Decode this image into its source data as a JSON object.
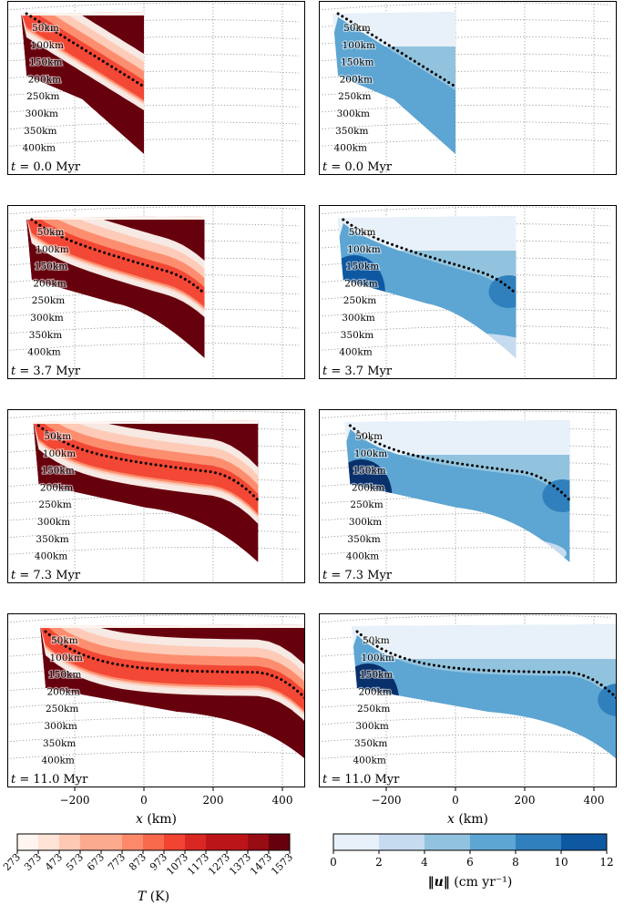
{
  "chart_data": {
    "type": "contour",
    "time_unit": "Myr",
    "time_symbol": "t",
    "x_axis": {
      "label": "x (km)",
      "label_var": "x",
      "label_unit": "(km)",
      "ticks": [
        -200,
        0,
        200,
        400
      ],
      "tick_labels": [
        "−200",
        "0",
        "200",
        "400"
      ],
      "range": [
        -355,
        490
      ]
    },
    "depth_labels": [
      "50km",
      "100km",
      "150km",
      "200km",
      "250km",
      "300km",
      "350km",
      "400km"
    ],
    "depth_values_km": [
      50,
      100,
      150,
      200,
      250,
      300,
      350,
      400
    ],
    "panels": [
      {
        "time": "0.0",
        "time_label": "t = 0.0 Myr",
        "time_text": "0.0 Myr",
        "x_right_km": 0,
        "x_left_km": -355
      },
      {
        "time": "3.7",
        "time_label": "t = 3.7 Myr",
        "time_text": "3.7 Myr",
        "x_right_km": 175,
        "x_left_km": -340
      },
      {
        "time": "7.3",
        "time_label": "t = 7.3 Myr",
        "time_text": "7.3 Myr",
        "x_right_km": 330,
        "x_left_km": -320
      },
      {
        "time": "11.0",
        "time_label": "t = 11.0 Myr",
        "time_text": "11.0 Myr",
        "x_right_km": 490,
        "x_left_km": -300
      }
    ],
    "temperature_colorbar": {
      "label": "T (K)",
      "label_var": "T",
      "label_unit": "(K)",
      "ticks": [
        "273",
        "373",
        "473",
        "573",
        "673",
        "773",
        "873",
        "973",
        "1073",
        "1173",
        "1273",
        "1373",
        "1473",
        "1573"
      ],
      "colormap": "Reds",
      "colors": [
        "#fff5f0",
        "#fee3d6",
        "#fdc9b4",
        "#fcaa8e",
        "#fc8a6a",
        "#f9694c",
        "#f14432",
        "#d92723",
        "#bb151a",
        "#980c13",
        "#67000d"
      ]
    },
    "velocity_colorbar": {
      "label": "‖u‖ (cm yr⁻¹)",
      "label_unit": "(cm yr⁻¹)",
      "ticks": [
        "0",
        "2",
        "4",
        "6",
        "8",
        "10",
        "12"
      ],
      "colormap": "Blues",
      "colors": [
        "#e8f1fa",
        "#c6dbef",
        "#91c3de",
        "#5da5d2",
        "#3080bd",
        "#0e58a2",
        "#08306b"
      ]
    }
  }
}
